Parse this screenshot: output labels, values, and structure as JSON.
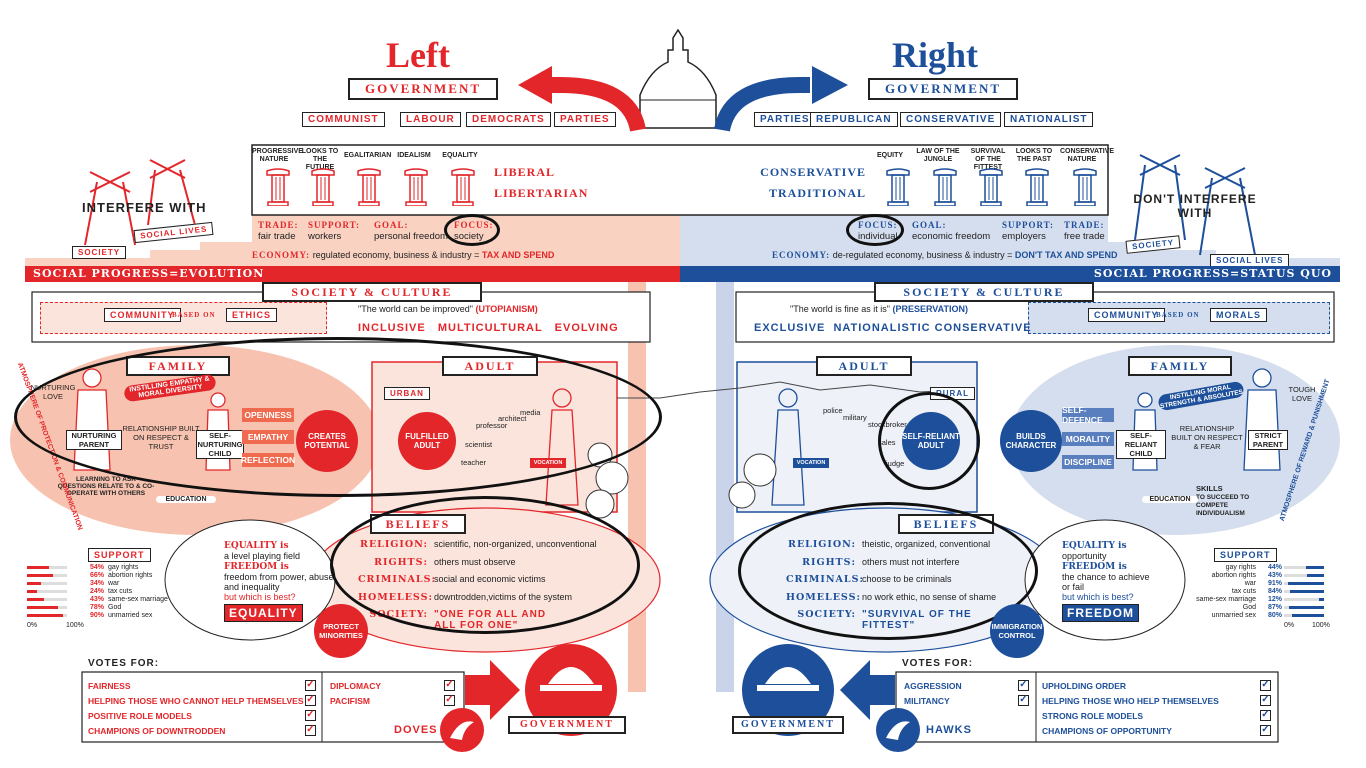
{
  "colors": {
    "left": "#e3262a",
    "right": "#1d4f9a",
    "left_light": "#f9d2c2",
    "right_light": "#d5deee"
  },
  "header": {
    "left_title": "Left",
    "right_title": "Right",
    "left_gov": "GOVERNMENT",
    "right_gov": "GOVERNMENT"
  },
  "left_parties": [
    "COMMUNIST",
    "LABOUR",
    "DEMOCRATS",
    "PARTIES"
  ],
  "right_parties": [
    "PARTIES",
    "REPUBLICAN",
    "CONSERVATIVE",
    "NATIONALIST"
  ],
  "left_pillars": [
    "PROGRESSIVE NATURE",
    "LOOKS TO THE FUTURE",
    "EGALITARIAN",
    "IDEALISM",
    "EQUALITY"
  ],
  "right_pillars": [
    "EQUITY",
    "LAW OF THE JUNGLE",
    "SURVIVAL OF THE FITTEST",
    "LOOKS TO THE PAST",
    "CONSERVATIVE NATURE"
  ],
  "left_labels": {
    "liberal": "LIBERAL",
    "libertarian": "LIBERTARIAN"
  },
  "right_labels": {
    "conservative": "CONSERVATIVE",
    "traditional": "TRADITIONAL"
  },
  "left_interfere": {
    "text": "INTERFERE WITH",
    "society": "SOCIETY",
    "social_lives": "SOCIAL LIVES"
  },
  "right_interfere": {
    "text": "DON'T INTERFERE WITH",
    "society": "SOCIETY",
    "social_lives": "SOCIAL LIVES"
  },
  "left_row": {
    "trade_k": "TRADE:",
    "trade_v": "fair trade",
    "support_k": "SUPPORT:",
    "support_v": "workers",
    "goal_k": "GOAL:",
    "goal_v": "personal freedom",
    "focus_k": "FOCUS:",
    "focus_v": "society"
  },
  "right_row": {
    "focus_k": "FOCUS:",
    "focus_v": "individual",
    "goal_k": "GOAL:",
    "goal_v": "economic freedom",
    "support_k": "SUPPORT:",
    "support_v": "employers",
    "trade_k": "TRADE:",
    "trade_v": "free trade"
  },
  "left_economy": {
    "k": "ECONOMY:",
    "v": "regulated economy, business & industry =",
    "tag": "TAX AND SPEND"
  },
  "right_economy": {
    "k": "ECONOMY:",
    "v": "de-regulated economy, business & industry =",
    "tag": "DON'T TAX AND SPEND"
  },
  "left_social": "SOCIAL PROGRESS=EVOLUTION",
  "right_social": "SOCIAL PROGRESS=STATUS QUO",
  "left_society": {
    "banner": "SOCIETY & CULTURE",
    "community": "COMMUNITY",
    "based_on": "BASED ON",
    "ethics": "ETHICS",
    "quote": "\"The world can be improved\"",
    "quote_tag": "(UTOPIANISM)",
    "traits": "INCLUSIVE   MULTICULTURAL   EVOLVING"
  },
  "right_society": {
    "banner": "SOCIETY & CULTURE",
    "community": "COMMUNITY",
    "based_on": "BASED ON",
    "morals": "MORALS",
    "quote": "\"The world is fine as it is\"",
    "quote_tag": "(PRESERVATION)",
    "traits": "EXCLUSIVE  NATIONALISTIC CONSERVATIVE"
  },
  "left_family": {
    "banner": "FAMILY",
    "nurturing_love": "NURTURING LOVE",
    "instilling": "INSTILLING EMPATHY & MORAL DIVERSITY",
    "parent": "NURTURING PARENT",
    "relationship": "RELATIONSHIP BUILT ON RESPECT & TRUST",
    "child": "SELF-NURTURING CHILD",
    "openness": "OPENNESS",
    "empathy": "EMPATHY",
    "reflection": "REFLECTION",
    "creates": "CREATES POTENTIAL",
    "learning": "LEARNING TO ASK QUESTIONS RELATE TO & CO-OPERATE WITH OTHERS",
    "education": "EDUCATION",
    "atmosphere": "ATMOSPHERE OF PROTECTION & COMMUNICATION"
  },
  "right_family": {
    "banner": "FAMILY",
    "tough_love": "TOUGH LOVE",
    "instilling": "INSTILLING MORAL STRENGTH & ABSOLUTES",
    "parent": "STRICT PARENT",
    "relationship": "RELATIONSHIP BUILT ON RESPECT & FEAR",
    "child": "SELF-RELIANT CHILD",
    "self_defence": "SELF-DEFENCE",
    "morality": "MORALITY",
    "discipline": "DISCIPLINE",
    "builds": "BUILDS CHARACTER",
    "skills": "SKILLS",
    "skills_text": "TO SUCCEED TO COMPETE INDIVIDUALISM",
    "education": "EDUCATION",
    "atmosphere": "ATMOSPHERE OF REWARD & PUNISHMENT"
  },
  "left_adult": {
    "banner": "ADULT",
    "urban": "URBAN",
    "fulfilled": "FULFILLED ADULT",
    "vocation": "VOCATION",
    "jobs": [
      "media",
      "architect",
      "professor",
      "scientist",
      "teacher"
    ]
  },
  "right_adult": {
    "banner": "ADULT",
    "rural": "RURAL",
    "self_reliant": "SELF-RELIANT ADULT",
    "vocation": "VOCATION",
    "jobs": [
      "police",
      "military",
      "stockbroker",
      "sales",
      "judge"
    ]
  },
  "left_beliefs": {
    "banner": "BELIEFS",
    "rows": [
      {
        "k": "RELIGION:",
        "v": "scientific, non-organized, unconventional"
      },
      {
        "k": "RIGHTS:",
        "v": "others must observe"
      },
      {
        "k": "CRIMINALS:",
        "v": "social and economic victims"
      },
      {
        "k": "HOMELESS:",
        "v": "downtrodden,victims of the system"
      },
      {
        "k": "SOCIETY:",
        "v": "\"ONE FOR ALL AND ALL FOR ONE\""
      }
    ]
  },
  "right_beliefs": {
    "banner": "BELIEFS",
    "rows": [
      {
        "k": "RELIGION:",
        "v": "theistic, organized, conventional"
      },
      {
        "k": "RIGHTS:",
        "v": "others must not interfere"
      },
      {
        "k": "CRIMINALS:",
        "v": "choose to be criminals"
      },
      {
        "k": "HOMELESS:",
        "v": "no work ethic, no sense of shame"
      },
      {
        "k": "SOCIETY:",
        "v": "\"SURVIVAL OF THE FITTEST\""
      }
    ]
  },
  "left_equality": {
    "eq_k": "EQUALITY is",
    "eq_v": "a level playing field",
    "fr_k": "FREEDOM is",
    "fr_v": "freedom from power, abuse and inequality",
    "q": "but which is best?",
    "answer": "EQUALITY",
    "protect": "PROTECT MINORITIES"
  },
  "right_equality": {
    "eq_k": "EQUALITY is",
    "eq_v": "opportunity",
    "fr_k": "FREEDOM is",
    "fr_v": "the chance to achieve or fail",
    "q": "but which is best?",
    "answer": "FREEDOM",
    "immigration": "IMMIGRATION CONTROL"
  },
  "left_support": {
    "title": "SUPPORT",
    "axis_min": "0%",
    "axis_max": "100%",
    "items": [
      {
        "pct": "54%",
        "label": "gay rights",
        "v": 54
      },
      {
        "pct": "66%",
        "label": "abortion rights",
        "v": 66
      },
      {
        "pct": "34%",
        "label": "war",
        "v": 34
      },
      {
        "pct": "24%",
        "label": "tax cuts",
        "v": 24
      },
      {
        "pct": "43%",
        "label": "same-sex marriage",
        "v": 43
      },
      {
        "pct": "78%",
        "label": "God",
        "v": 78
      },
      {
        "pct": "90%",
        "label": "unmarried sex",
        "v": 90
      }
    ]
  },
  "right_support": {
    "title": "SUPPORT",
    "axis_min": "0%",
    "axis_max": "100%",
    "items": [
      {
        "pct": "44%",
        "label": "gay rights",
        "v": 44
      },
      {
        "pct": "43%",
        "label": "abortion rights",
        "v": 43
      },
      {
        "pct": "91%",
        "label": "war",
        "v": 91
      },
      {
        "pct": "84%",
        "label": "tax cuts",
        "v": 84
      },
      {
        "pct": "12%",
        "label": "same-sex marriage",
        "v": 12
      },
      {
        "pct": "87%",
        "label": "God",
        "v": 87
      },
      {
        "pct": "80%",
        "label": "unmarried sex",
        "v": 80
      }
    ]
  },
  "left_votes": {
    "title": "VOTES FOR:",
    "col1": [
      "FAIRNESS",
      "HELPING THOSE WHO CANNOT HELP THEMSELVES",
      "POSITIVE ROLE MODELS",
      "CHAMPIONS OF DOWNTRODDEN"
    ],
    "col2": [
      "DIPLOMACY",
      "PACIFISM"
    ],
    "doves": "DOVES",
    "gov": "GOVERNMENT"
  },
  "right_votes": {
    "title": "VOTES FOR:",
    "col1": [
      "AGGRESSION",
      "MILITANCY"
    ],
    "col2": [
      "UPHOLDING ORDER",
      "HELPING THOSE WHO HELP THEMSELVES",
      "STRONG ROLE MODELS",
      "CHAMPIONS OF OPPORTUNITY"
    ],
    "hawks": "HAWKS",
    "gov": "GOVERNMENT"
  }
}
